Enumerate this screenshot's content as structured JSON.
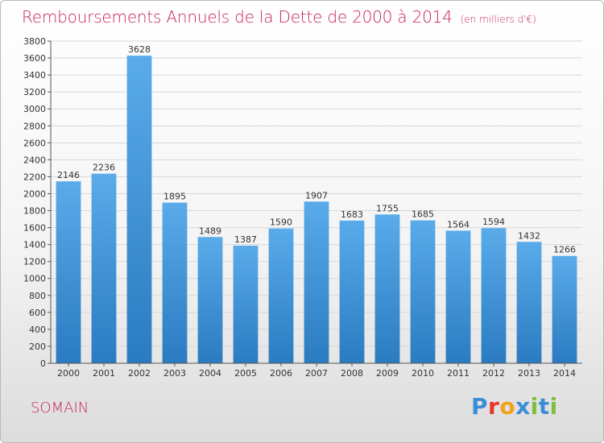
{
  "header": {
    "title": "Remboursements Annuels de la Dette de 2000 à 2014",
    "unit": "(en milliers d'€)"
  },
  "footer": {
    "commune": "SOMAIN",
    "logo_text": "Proxiti",
    "logo_colors": [
      "#3a8ed6",
      "#e8362a",
      "#f0a21a",
      "#3a8ed6",
      "#7cbf3a",
      "#3a8ed6",
      "#7cbf3a"
    ]
  },
  "colors": {
    "title": "#c8245a",
    "bar_top": "#5aabea",
    "bar_bottom": "#2a7bc0",
    "grid": "#d8d8d8",
    "axis": "#555555"
  },
  "chart_data": {
    "type": "bar",
    "title": "Remboursements Annuels de la Dette de 2000 à 2014",
    "subtitle": "(en milliers d'€)",
    "categories": [
      "2000",
      "2001",
      "2002",
      "2003",
      "2004",
      "2005",
      "2006",
      "2007",
      "2008",
      "2009",
      "2010",
      "2011",
      "2012",
      "2013",
      "2014"
    ],
    "values": [
      2146,
      2236,
      3628,
      1895,
      1489,
      1387,
      1590,
      1907,
      1683,
      1755,
      1685,
      1564,
      1594,
      1432,
      1266
    ],
    "ylim": [
      0,
      3800
    ],
    "ytick_step": 200,
    "grid": true,
    "legend": "none",
    "xlabel": "",
    "ylabel": ""
  }
}
